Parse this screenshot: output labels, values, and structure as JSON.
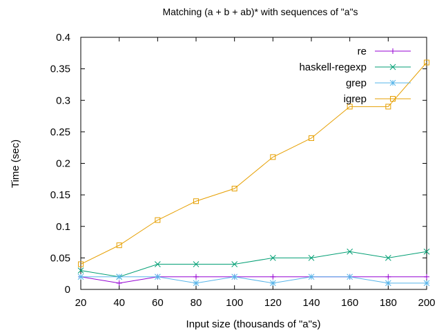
{
  "chart_data": {
    "type": "line",
    "title": "Matching (a + b + ab)* with sequences of \"a\"s",
    "xlabel": "Input size (thousands of \"a\"s)",
    "ylabel": "Time (sec)",
    "x": [
      20,
      40,
      60,
      80,
      100,
      120,
      140,
      160,
      180,
      200
    ],
    "xlim": [
      20,
      200
    ],
    "ylim": [
      0,
      0.4
    ],
    "x_ticks": [
      "20",
      "40",
      "60",
      "80",
      "100",
      "120",
      "140",
      "160",
      "180",
      "200"
    ],
    "y_ticks": [
      "0",
      "0.05",
      "0.1",
      "0.15",
      "0.2",
      "0.25",
      "0.3",
      "0.35",
      "0.4"
    ],
    "grid": false,
    "legend_position": "top-right",
    "series": [
      {
        "name": "re",
        "color": "#9400d3",
        "marker": "plus",
        "values": [
          0.02,
          0.01,
          0.02,
          0.02,
          0.02,
          0.02,
          0.02,
          0.02,
          0.02,
          0.02
        ]
      },
      {
        "name": "haskell-regexp",
        "color": "#009e73",
        "marker": "cross",
        "values": [
          0.03,
          0.02,
          0.04,
          0.04,
          0.04,
          0.05,
          0.05,
          0.06,
          0.05,
          0.06
        ]
      },
      {
        "name": "grep",
        "color": "#56b4e9",
        "marker": "star",
        "values": [
          0.02,
          0.02,
          0.02,
          0.01,
          0.02,
          0.01,
          0.02,
          0.02,
          0.01,
          0.01
        ]
      },
      {
        "name": "igrep",
        "color": "#e69f00",
        "marker": "square",
        "values": [
          0.04,
          0.07,
          0.11,
          0.14,
          0.16,
          0.21,
          0.24,
          0.29,
          0.29,
          0.36
        ]
      }
    ]
  }
}
